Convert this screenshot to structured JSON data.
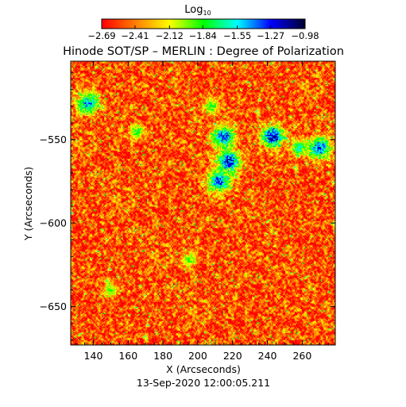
{
  "chart_data": {
    "type": "heatmap",
    "title": "Hinode SOT/SP – MERLIN : Degree of Polarization",
    "subtitle": "13-Sep-2020 12:00:05.211",
    "xlabel": "X (Arcseconds)",
    "ylabel": "Y (Arcseconds)",
    "xlim": [
      127,
      279
    ],
    "ylim": [
      -673,
      -503
    ],
    "xticks": [
      140,
      160,
      180,
      200,
      220,
      240,
      260
    ],
    "xtick_labels": [
      "140",
      "160",
      "180",
      "200",
      "220",
      "240",
      "260"
    ],
    "yticks": [
      -550,
      -600,
      -650
    ],
    "ytick_labels": [
      "−550",
      "−600",
      "−650"
    ],
    "colorbar": {
      "label_base": "Log",
      "label_sub": "10",
      "ticks": [
        -2.69,
        -2.41,
        -2.12,
        -1.84,
        -1.55,
        -1.27,
        -0.98
      ],
      "tick_labels": [
        "−2.69",
        "−2.41",
        "−2.12",
        "−1.84",
        "−1.55",
        "−1.27",
        "−0.98"
      ],
      "range": [
        -2.69,
        -0.98
      ],
      "colormap": [
        "#ff0000",
        "#ff8000",
        "#ffff00",
        "#00ff00",
        "#00ffff",
        "#0000ff",
        "#000033"
      ]
    },
    "background_log10_value": -2.5,
    "features": [
      {
        "x": 218,
        "y": -563,
        "log10_value": -1.2
      },
      {
        "x": 215,
        "y": -548,
        "log10_value": -1.3
      },
      {
        "x": 212,
        "y": -575,
        "log10_value": -1.3
      },
      {
        "x": 243,
        "y": -548,
        "log10_value": -1.1
      },
      {
        "x": 137,
        "y": -528,
        "log10_value": -1.4
      },
      {
        "x": 270,
        "y": -555,
        "log10_value": -1.3
      },
      {
        "x": 258,
        "y": -555,
        "log10_value": -1.6
      },
      {
        "x": 208,
        "y": -530,
        "log10_value": -1.8
      },
      {
        "x": 165,
        "y": -545,
        "log10_value": -1.8
      },
      {
        "x": 150,
        "y": -640,
        "log10_value": -1.9
      },
      {
        "x": 195,
        "y": -622,
        "log10_value": -1.9
      }
    ]
  },
  "colors": {
    "background": "#ffffff",
    "text": "#000000"
  }
}
